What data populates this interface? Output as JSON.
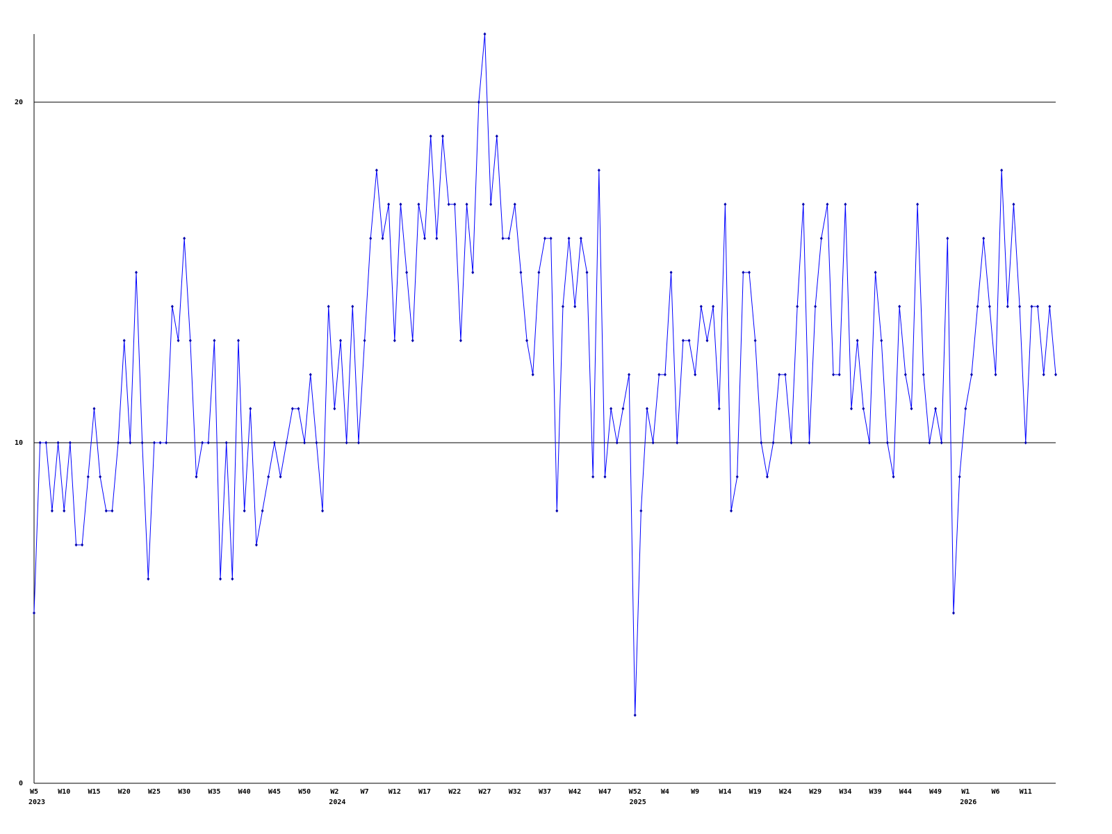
{
  "chart_data": {
    "type": "line",
    "categories": [
      "W5",
      null,
      null,
      null,
      null,
      "W10",
      null,
      null,
      null,
      null,
      "W15",
      null,
      null,
      null,
      null,
      "W20",
      null,
      null,
      null,
      null,
      "W25",
      null,
      null,
      null,
      null,
      "W30",
      null,
      null,
      null,
      null,
      "W35",
      null,
      null,
      null,
      null,
      "W40",
      null,
      null,
      null,
      null,
      "W45",
      null,
      null,
      null,
      null,
      "W50",
      null,
      null,
      null,
      null,
      "W2",
      null,
      null,
      null,
      null,
      "W7",
      null,
      null,
      null,
      null,
      "W12",
      null,
      null,
      null,
      null,
      "W17",
      null,
      null,
      null,
      null,
      "W22",
      null,
      null,
      null,
      null,
      "W27",
      null,
      null,
      null,
      null,
      "W32",
      null,
      null,
      null,
      null,
      "W37",
      null,
      null,
      null,
      null,
      "W42",
      null,
      null,
      null,
      null,
      "W47",
      null,
      null,
      null,
      null,
      "W52",
      null,
      null,
      null,
      null,
      "W4",
      null,
      null,
      null,
      null,
      "W9",
      null,
      null,
      null,
      null,
      "W14",
      null,
      null,
      null,
      null,
      "W19",
      null,
      null,
      null,
      null,
      "W24",
      null,
      null,
      null,
      null,
      "W29",
      null,
      null,
      null,
      null,
      "W34",
      null,
      null,
      null,
      null,
      "W39",
      null,
      null,
      null,
      null,
      "W44",
      null,
      null,
      null,
      null,
      "W49",
      null,
      null,
      null,
      null,
      "W1",
      null,
      null,
      null,
      null,
      "W6",
      null,
      null,
      null,
      null,
      "W11",
      null,
      null,
      null,
      null,
      null
    ],
    "category_years": [
      "2023",
      null,
      null,
      null,
      null,
      null,
      null,
      null,
      null,
      null,
      null,
      null,
      null,
      null,
      null,
      null,
      null,
      null,
      null,
      null,
      null,
      null,
      null,
      null,
      null,
      null,
      null,
      null,
      null,
      null,
      null,
      null,
      null,
      null,
      null,
      null,
      null,
      null,
      null,
      null,
      null,
      null,
      null,
      null,
      null,
      null,
      null,
      null,
      null,
      null,
      "2024",
      null,
      null,
      null,
      null,
      null,
      null,
      null,
      null,
      null,
      null,
      null,
      null,
      null,
      null,
      null,
      null,
      null,
      null,
      null,
      null,
      null,
      null,
      null,
      null,
      null,
      null,
      null,
      null,
      null,
      null,
      null,
      null,
      null,
      null,
      null,
      null,
      null,
      null,
      null,
      null,
      null,
      null,
      null,
      null,
      null,
      null,
      null,
      null,
      null,
      "2025",
      null,
      null,
      null,
      null,
      null,
      null,
      null,
      null,
      null,
      null,
      null,
      null,
      null,
      null,
      null,
      null,
      null,
      null,
      null,
      null,
      null,
      null,
      null,
      null,
      null,
      null,
      null,
      null,
      null,
      null,
      null,
      null,
      null,
      null,
      null,
      null,
      null,
      null,
      null,
      null,
      null,
      null,
      null,
      null,
      null,
      null,
      null,
      null,
      null,
      null,
      null,
      null,
      null,
      null,
      "2026",
      null,
      null,
      null,
      null,
      null,
      null,
      null,
      null,
      null,
      null,
      null,
      null,
      null,
      null,
      null
    ],
    "series": [
      {
        "color": "#0000ff",
        "values": [
          5,
          10,
          10,
          8,
          10,
          8,
          10,
          7,
          7,
          9,
          11,
          9,
          8,
          8,
          10,
          13,
          10,
          15,
          10,
          6,
          10,
          10,
          10,
          14,
          13,
          16,
          13,
          9,
          10,
          10,
          13,
          6,
          10,
          6,
          13,
          8,
          11,
          7,
          8,
          9,
          10,
          9,
          10,
          11,
          11,
          10,
          12,
          10,
          8,
          14,
          11,
          13,
          10,
          14,
          10,
          13,
          16,
          18,
          16,
          17,
          13,
          17,
          15,
          13,
          17,
          16,
          19,
          16,
          19,
          17,
          17,
          13,
          17,
          15,
          20,
          22,
          17,
          19,
          16,
          16,
          17,
          15,
          13,
          12,
          15,
          16,
          16,
          8,
          14,
          16,
          14,
          16,
          15,
          9,
          18,
          9,
          11,
          10,
          11,
          12,
          2,
          8,
          11,
          10,
          12,
          12,
          15,
          10,
          13,
          13,
          12,
          14,
          13,
          14,
          11,
          17,
          8,
          9,
          15,
          15,
          13,
          10,
          9,
          10,
          12,
          12,
          10,
          14,
          17,
          10,
          14,
          16,
          17,
          12,
          12,
          17,
          11,
          13,
          11,
          10,
          15,
          13,
          10,
          9,
          14,
          12,
          11,
          17,
          12,
          10,
          11,
          10,
          16,
          5,
          9,
          11,
          12,
          14,
          16,
          14,
          12,
          18,
          14,
          17,
          14,
          10,
          14,
          14,
          12,
          14,
          12
        ]
      }
    ],
    "ylim": [
      0,
      22
    ],
    "yticks": [
      0,
      10,
      20
    ],
    "grid": true
  }
}
